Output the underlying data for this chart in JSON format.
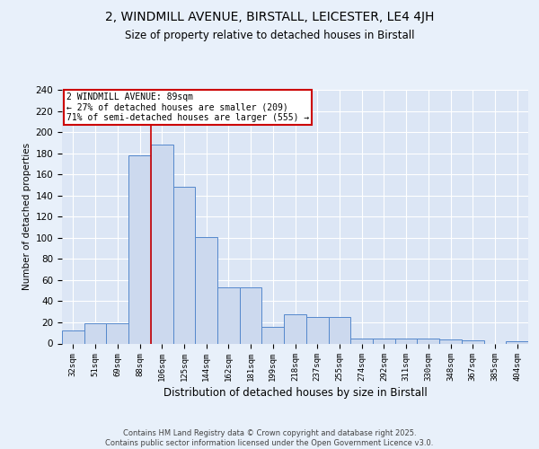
{
  "title_line1": "2, WINDMILL AVENUE, BIRSTALL, LEICESTER, LE4 4JH",
  "title_line2": "Size of property relative to detached houses in Birstall",
  "xlabel": "Distribution of detached houses by size in Birstall",
  "ylabel": "Number of detached properties",
  "bar_labels": [
    "32sqm",
    "51sqm",
    "69sqm",
    "88sqm",
    "106sqm",
    "125sqm",
    "144sqm",
    "162sqm",
    "181sqm",
    "199sqm",
    "218sqm",
    "237sqm",
    "255sqm",
    "274sqm",
    "292sqm",
    "311sqm",
    "330sqm",
    "348sqm",
    "367sqm",
    "385sqm",
    "404sqm"
  ],
  "bar_values": [
    12,
    19,
    19,
    178,
    188,
    148,
    101,
    53,
    53,
    16,
    28,
    25,
    25,
    5,
    5,
    5,
    5,
    4,
    3,
    0,
    2
  ],
  "bar_color": "#ccd9ee",
  "bar_edge_color": "#5588cc",
  "background_color": "#dce6f5",
  "grid_color": "#ffffff",
  "red_line_x": 3.5,
  "annotation_text": "2 WINDMILL AVENUE: 89sqm\n← 27% of detached houses are smaller (209)\n71% of semi-detached houses are larger (555) →",
  "annotation_box_color": "#ffffff",
  "annotation_box_edge_color": "#cc0000",
  "property_line_color": "#cc0000",
  "ylim": [
    0,
    240
  ],
  "yticks": [
    0,
    20,
    40,
    60,
    80,
    100,
    120,
    140,
    160,
    180,
    200,
    220,
    240
  ],
  "footer_text": "Contains HM Land Registry data © Crown copyright and database right 2025.\nContains public sector information licensed under the Open Government Licence v3.0.",
  "fig_bg_color": "#e8f0fa"
}
